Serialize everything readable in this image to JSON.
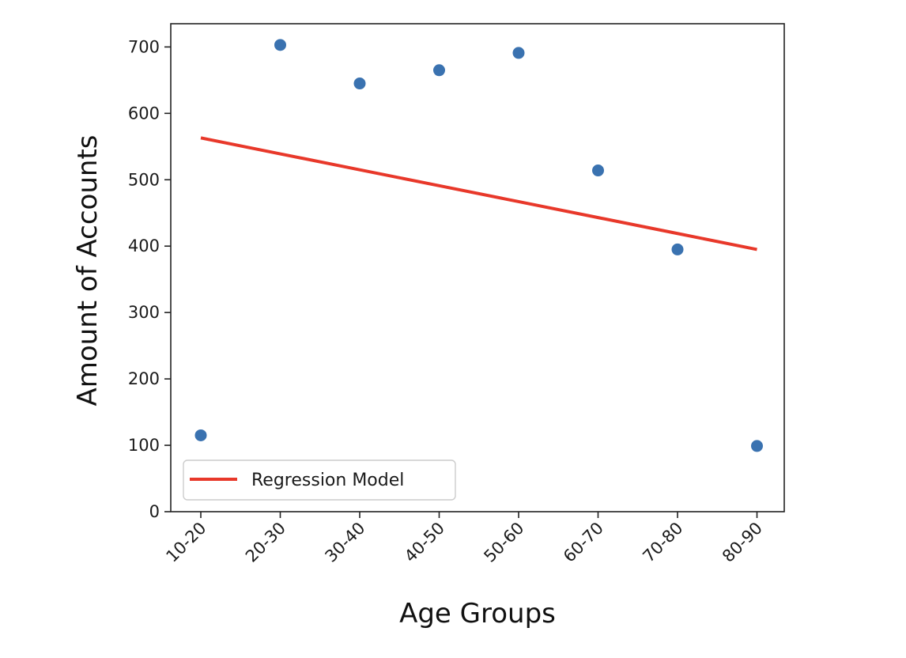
{
  "chart_data": {
    "type": "scatter",
    "title": "",
    "xlabel": "Age Groups",
    "ylabel": "Amount of Accounts",
    "categories": [
      "10-20",
      "20-30",
      "30-40",
      "40-50",
      "50-60",
      "60-70",
      "70-80",
      "80-90"
    ],
    "y_ticks": [
      "0",
      "100",
      "200",
      "300",
      "400",
      "500",
      "600",
      "700"
    ],
    "ylim": [
      0,
      735
    ],
    "grid": false,
    "legend_position": "lower-left",
    "series": [
      {
        "kind": "scatter",
        "values": [
          115,
          703,
          645,
          665,
          691,
          514,
          395,
          99
        ],
        "color": "#3a72b0"
      },
      {
        "kind": "line",
        "name": "Regression Model",
        "values": [
          563,
          539,
          515,
          491,
          467,
          443,
          419,
          395
        ],
        "color": "#e8382a"
      }
    ]
  }
}
